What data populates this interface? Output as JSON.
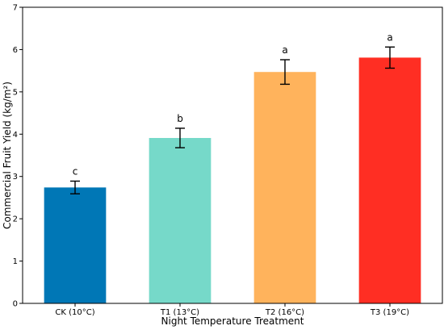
{
  "chart_data": {
    "type": "bar",
    "title": "",
    "xlabel": "Night Temperature Treatment",
    "ylabel": "Commercial Fruit Yield (kg/m²)",
    "ylim": [
      0,
      7
    ],
    "yticks": [
      "0",
      "1",
      "2",
      "3",
      "4",
      "5",
      "6",
      "7"
    ],
    "categories": [
      "CK (10°C)",
      "T1 (13°C)",
      "T2 (16°C)",
      "T3 (19°C)"
    ],
    "values": [
      2.74,
      3.91,
      5.47,
      5.81
    ],
    "errors": [
      0.15,
      0.23,
      0.29,
      0.25
    ],
    "significance": [
      "c",
      "b",
      "a",
      "a"
    ],
    "colors": [
      "#0077b6",
      "#76d9c9",
      "#ffb35c",
      "#ff2e23"
    ],
    "grid": false,
    "legend": "none"
  }
}
